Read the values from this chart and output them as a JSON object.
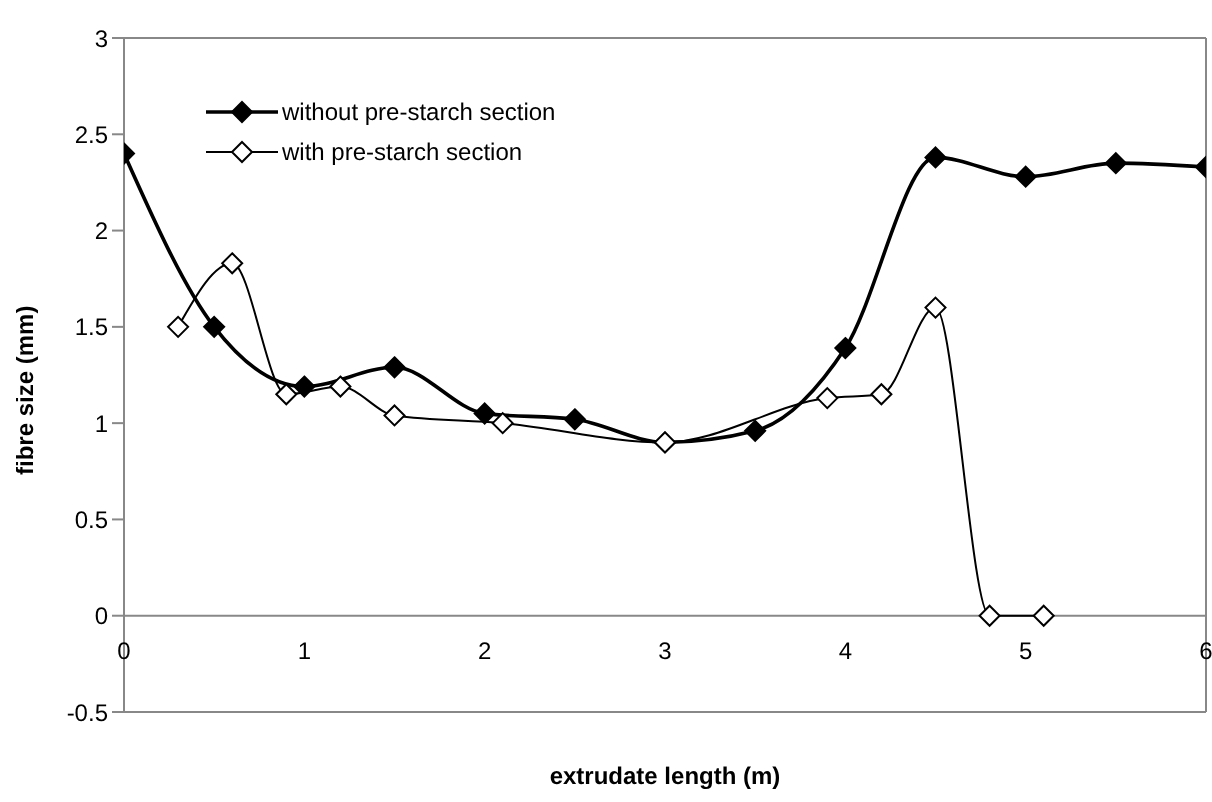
{
  "chart_data": {
    "type": "line",
    "xlabel": "extrudate length (m)",
    "ylabel": "fibre size (mm)",
    "xlim": [
      0,
      6
    ],
    "xticks": [
      0,
      1,
      2,
      3,
      4,
      5,
      6
    ],
    "ylim": [
      -0.5,
      3
    ],
    "yticks": [
      -0.5,
      0,
      0.5,
      1,
      1.5,
      2,
      2.5,
      3
    ],
    "legend": "top left",
    "marker": "diamond",
    "line_style": "solid",
    "series": [
      {
        "name": "without pre-starch section",
        "color": "#000000",
        "x": [
          0,
          0.5,
          1,
          1.5,
          2,
          2.5,
          3,
          3.5,
          4,
          4.5,
          5,
          5.5,
          6
        ],
        "values": [
          2.4,
          1.5,
          1.19,
          1.29,
          1.05,
          1.02,
          0.9,
          0.96,
          1.39,
          2.38,
          2.28,
          2.35,
          2.33
        ]
      },
      {
        "name": "with pre-starch section",
        "color": "#ffffff",
        "x": [
          0.3,
          0.6,
          0.9,
          1.2,
          1.5,
          2.1,
          3,
          3.9,
          4.2,
          4.5,
          4.8,
          5.1
        ],
        "values": [
          1.5,
          1.83,
          1.15,
          1.19,
          1.04,
          1.0,
          0.9,
          1.13,
          1.15,
          1.6,
          0,
          0
        ]
      }
    ]
  }
}
